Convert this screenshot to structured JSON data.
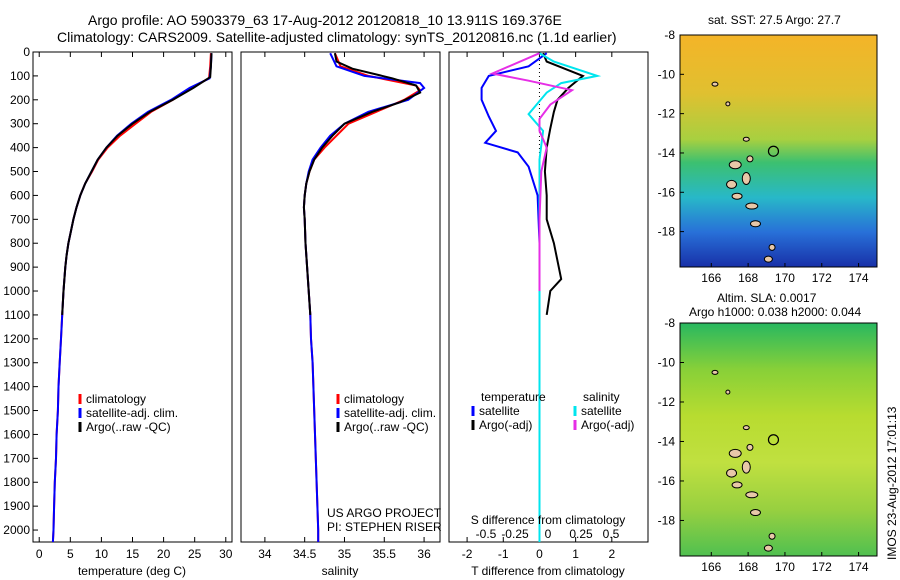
{
  "header": {
    "line1": "Argo profile: AO 5903379_63 17-Aug-2012 20120818_10 13.911S 169.376E",
    "line2": "Climatology: CARS2009. Satellite-adjusted climatology: synTS_20120816.nc (1.1d earlier)"
  },
  "colors": {
    "climatology": "#ff0000",
    "satellite": "#0000ff",
    "argo": "#000000",
    "sat_salinity": "#00e5ee",
    "argo_salinity": "#e62ee6"
  },
  "panel_temp": {
    "xlabel": "temperature (deg C)",
    "legend": [
      "climatology",
      "satellite-adj. clim.",
      "Argo(..raw -QC)"
    ]
  },
  "panel_sal": {
    "xlabel": "salinity",
    "legend": [
      "climatology",
      "satellite-adj. clim.",
      "Argo(..raw -QC)"
    ],
    "credit1": "US ARGO PROJECT",
    "credit2": "PI: STEPHEN RISER"
  },
  "panel_diff": {
    "xlabel": "T difference from climatology",
    "top_label": "S difference from climatology",
    "legend_temp_title": "temperature",
    "legend_sal_title": "salinity",
    "legend_temp": [
      "satellite",
      "Argo(-adj)"
    ],
    "legend_sal": [
      "satellite",
      "Argo(-adj)"
    ]
  },
  "map_sst": {
    "title": "sat. SST: 27.5  Argo: 27.7"
  },
  "map_sla": {
    "title1": "Altim. SLA: 0.0017",
    "title2": "Argo h1000: 0.038  h2000: 0.044"
  },
  "footer_stamp": "IMOS 23-Aug-2012 17:01:13",
  "chart_data": [
    {
      "type": "line",
      "name": "temperature-profile",
      "xlabel": "temperature (deg C)",
      "ylabel": "",
      "xlim": [
        -1,
        31
      ],
      "ylim": [
        2050,
        0
      ],
      "xticks": [
        0,
        5,
        10,
        15,
        20,
        25,
        30
      ],
      "yticks": [
        0,
        100,
        200,
        300,
        400,
        500,
        600,
        700,
        800,
        900,
        1000,
        1100,
        1200,
        1300,
        1400,
        1500,
        1600,
        1700,
        1800,
        1900,
        2000
      ],
      "series": [
        {
          "name": "climatology",
          "color": "#ff0000",
          "points": [
            [
              27.6,
              5
            ],
            [
              27.5,
              60
            ],
            [
              27.3,
              110
            ],
            [
              24.5,
              150
            ],
            [
              21.5,
              200
            ],
            [
              18,
              250
            ],
            [
              15.5,
              300
            ],
            [
              13,
              350
            ],
            [
              11,
              400
            ],
            [
              9.5,
              450
            ],
            [
              8.5,
              500
            ],
            [
              7.4,
              550
            ],
            [
              6.6,
              600
            ],
            [
              6,
              650
            ],
            [
              5.5,
              700
            ],
            [
              5.1,
              750
            ],
            [
              4.7,
              800
            ],
            [
              4.4,
              850
            ],
            [
              4.2,
              900
            ],
            [
              3.9,
              1000
            ],
            [
              3.7,
              1100
            ],
            [
              3.5,
              1200
            ],
            [
              3.3,
              1300
            ],
            [
              3.1,
              1400
            ],
            [
              3,
              1500
            ],
            [
              2.8,
              1600
            ],
            [
              2.7,
              1700
            ],
            [
              2.5,
              1800
            ],
            [
              2.4,
              1900
            ],
            [
              2.3,
              2000
            ],
            [
              2.2,
              2050
            ]
          ]
        },
        {
          "name": "satellite-adj. clim.",
          "color": "#0000ff",
          "points": [
            [
              27.7,
              5
            ],
            [
              27.6,
              60
            ],
            [
              27.4,
              110
            ],
            [
              24.2,
              150
            ],
            [
              21.2,
              200
            ],
            [
              17.5,
              250
            ],
            [
              14.8,
              300
            ],
            [
              12.5,
              350
            ],
            [
              10.8,
              400
            ],
            [
              9.4,
              450
            ],
            [
              8.4,
              500
            ],
            [
              7.4,
              550
            ],
            [
              6.6,
              600
            ],
            [
              6,
              650
            ],
            [
              5.5,
              700
            ],
            [
              5.1,
              750
            ],
            [
              4.7,
              800
            ],
            [
              4.4,
              850
            ],
            [
              4.2,
              900
            ],
            [
              3.9,
              1000
            ],
            [
              3.7,
              1100
            ],
            [
              3.5,
              1200
            ],
            [
              3.3,
              1300
            ],
            [
              3.1,
              1400
            ],
            [
              3,
              1500
            ],
            [
              2.8,
              1600
            ],
            [
              2.7,
              1700
            ],
            [
              2.5,
              1800
            ],
            [
              2.4,
              1900
            ],
            [
              2.3,
              2000
            ],
            [
              2.2,
              2050
            ]
          ]
        },
        {
          "name": "Argo(..raw -QC)",
          "color": "#000000",
          "points": [
            [
              27.7,
              5
            ],
            [
              27.6,
              60
            ],
            [
              27.5,
              105
            ],
            [
              24.8,
              150
            ],
            [
              21.5,
              200
            ],
            [
              17.8,
              250
            ],
            [
              15,
              300
            ],
            [
              12.6,
              350
            ],
            [
              10.8,
              400
            ],
            [
              9.4,
              450
            ],
            [
              8.4,
              500
            ],
            [
              7.4,
              550
            ],
            [
              6.6,
              600
            ],
            [
              6,
              650
            ],
            [
              5.5,
              700
            ],
            [
              5.1,
              750
            ],
            [
              4.7,
              800
            ],
            [
              4.4,
              850
            ],
            [
              4.2,
              900
            ],
            [
              3.9,
              1000
            ],
            [
              3.7,
              1100
            ]
          ]
        }
      ]
    },
    {
      "type": "line",
      "name": "salinity-profile",
      "xlabel": "salinity",
      "ylabel": "",
      "xlim": [
        33.7,
        36.2
      ],
      "ylim": [
        2050,
        0
      ],
      "xticks": [
        34,
        34.5,
        35,
        35.5,
        36
      ],
      "series": [
        {
          "name": "climatology",
          "color": "#ff0000",
          "points": [
            [
              34.88,
              5
            ],
            [
              34.95,
              60
            ],
            [
              35.3,
              100
            ],
            [
              35.9,
              140
            ],
            [
              35.95,
              160
            ],
            [
              35.75,
              200
            ],
            [
              35.4,
              250
            ],
            [
              35.05,
              300
            ],
            [
              34.9,
              350
            ],
            [
              34.75,
              400
            ],
            [
              34.62,
              450
            ],
            [
              34.56,
              500
            ],
            [
              34.52,
              550
            ],
            [
              34.5,
              600
            ],
            [
              34.49,
              650
            ],
            [
              34.5,
              700
            ],
            [
              34.51,
              800
            ],
            [
              34.53,
              900
            ],
            [
              34.55,
              1000
            ],
            [
              34.57,
              1100
            ],
            [
              34.58,
              1200
            ],
            [
              34.6,
              1300
            ],
            [
              34.61,
              1400
            ],
            [
              34.62,
              1500
            ],
            [
              34.63,
              1600
            ],
            [
              34.64,
              1700
            ],
            [
              34.65,
              1800
            ],
            [
              34.66,
              1900
            ],
            [
              34.67,
              2000
            ],
            [
              34.67,
              2050
            ]
          ]
        },
        {
          "name": "satellite-adj. clim.",
          "color": "#0000ff",
          "points": [
            [
              34.82,
              5
            ],
            [
              34.9,
              60
            ],
            [
              35.25,
              100
            ],
            [
              35.95,
              130
            ],
            [
              36.0,
              150
            ],
            [
              35.8,
              200
            ],
            [
              35.3,
              250
            ],
            [
              35.0,
              300
            ],
            [
              34.82,
              350
            ],
            [
              34.7,
              400
            ],
            [
              34.6,
              450
            ],
            [
              34.55,
              500
            ],
            [
              34.52,
              550
            ],
            [
              34.5,
              600
            ],
            [
              34.49,
              650
            ],
            [
              34.5,
              700
            ],
            [
              34.51,
              800
            ],
            [
              34.53,
              900
            ],
            [
              34.55,
              1000
            ],
            [
              34.57,
              1100
            ],
            [
              34.58,
              1200
            ],
            [
              34.6,
              1300
            ],
            [
              34.61,
              1400
            ],
            [
              34.62,
              1500
            ],
            [
              34.63,
              1600
            ],
            [
              34.64,
              1700
            ],
            [
              34.65,
              1800
            ],
            [
              34.66,
              1900
            ],
            [
              34.67,
              2000
            ],
            [
              34.67,
              2050
            ]
          ]
        },
        {
          "name": "Argo(..raw -QC)",
          "color": "#000000",
          "points": [
            [
              34.88,
              5
            ],
            [
              34.9,
              40
            ],
            [
              35.1,
              70
            ],
            [
              35.6,
              110
            ],
            [
              35.9,
              140
            ],
            [
              35.95,
              170
            ],
            [
              35.7,
              210
            ],
            [
              35.35,
              250
            ],
            [
              35.0,
              300
            ],
            [
              34.85,
              350
            ],
            [
              34.72,
              400
            ],
            [
              34.62,
              450
            ],
            [
              34.56,
              500
            ],
            [
              34.52,
              550
            ],
            [
              34.5,
              600
            ],
            [
              34.49,
              650
            ],
            [
              34.5,
              700
            ],
            [
              34.51,
              800
            ],
            [
              34.53,
              900
            ],
            [
              34.55,
              1000
            ],
            [
              34.57,
              1100
            ]
          ]
        }
      ]
    },
    {
      "type": "line",
      "name": "difference-profile",
      "xlabel": "T difference from climatology",
      "ylabel": "",
      "xlim": [
        -2.5,
        3
      ],
      "ylim": [
        2050,
        0
      ],
      "xticks": [
        -2,
        -1,
        0,
        1,
        2
      ],
      "top_xticks": [
        "-0.5",
        "-0.25",
        "0",
        "0.25",
        "0.5"
      ],
      "series": [
        {
          "name": "T satellite",
          "color": "#0000ff",
          "points": [
            [
              0.2,
              5
            ],
            [
              -0.3,
              60
            ],
            [
              -1.4,
              100
            ],
            [
              -1.6,
              150
            ],
            [
              -1.6,
              200
            ],
            [
              -1.4,
              270
            ],
            [
              -1.2,
              330
            ],
            [
              -1.5,
              380
            ],
            [
              -0.6,
              420
            ],
            [
              -0.3,
              480
            ],
            [
              -0.05,
              600
            ],
            [
              0.0,
              800
            ],
            [
              0.0,
              1000
            ],
            [
              0.0,
              1500
            ],
            [
              0.0,
              2050
            ]
          ]
        },
        {
          "name": "T Argo(-adj)",
          "color": "#000000",
          "points": [
            [
              0.1,
              5
            ],
            [
              0.2,
              40
            ],
            [
              1.2,
              100
            ],
            [
              0.8,
              150
            ],
            [
              0.5,
              200
            ],
            [
              0.4,
              250
            ],
            [
              0.3,
              320
            ],
            [
              0.2,
              400
            ],
            [
              0.15,
              500
            ],
            [
              0.2,
              600
            ],
            [
              0.2,
              700
            ],
            [
              0.4,
              800
            ],
            [
              0.6,
              950
            ],
            [
              0.3,
              1000
            ],
            [
              0.2,
              1100
            ]
          ]
        },
        {
          "name": "S satellite",
          "color": "#00e5ee",
          "points": [
            [
              0.0,
              5
            ],
            [
              0.4,
              40
            ],
            [
              1.6,
              100
            ],
            [
              0.6,
              130
            ],
            [
              0.2,
              170
            ],
            [
              -0.3,
              260
            ],
            [
              0.1,
              330
            ],
            [
              0.0,
              450
            ],
            [
              0.0,
              700
            ],
            [
              0.0,
              1000
            ],
            [
              0.0,
              1500
            ],
            [
              0.0,
              2050
            ]
          ]
        },
        {
          "name": "S Argo(-adj)",
          "color": "#e62ee6",
          "points": [
            [
              0.0,
              5
            ],
            [
              -1.3,
              90
            ],
            [
              -0.3,
              120
            ],
            [
              0.9,
              160
            ],
            [
              0.3,
              220
            ],
            [
              0.0,
              280
            ],
            [
              0.0,
              330
            ],
            [
              0.2,
              400
            ],
            [
              0.05,
              500
            ],
            [
              0.0,
              700
            ],
            [
              0.0,
              1000
            ]
          ]
        }
      ]
    },
    {
      "type": "heatmap",
      "name": "satellite-sst-map",
      "title": "sat. SST: 27.5  Argo: 27.7",
      "xlim": [
        164.3,
        175
      ],
      "ylim": [
        -19.8,
        -8
      ],
      "xticks": [
        166,
        168,
        170,
        172,
        174
      ],
      "yticks": [
        -8,
        -10,
        -12,
        -14,
        -16,
        -18
      ],
      "float_position": [
        169.376,
        -13.911
      ]
    },
    {
      "type": "heatmap",
      "name": "altimeter-sla-map",
      "title": "Altim. SLA: 0.0017",
      "xlim": [
        164.3,
        175
      ],
      "ylim": [
        -19.8,
        -8
      ],
      "xticks": [
        166,
        168,
        170,
        172,
        174
      ],
      "yticks": [
        -8,
        -10,
        -12,
        -14,
        -16,
        -18
      ],
      "float_position": [
        169.376,
        -13.911
      ]
    }
  ]
}
